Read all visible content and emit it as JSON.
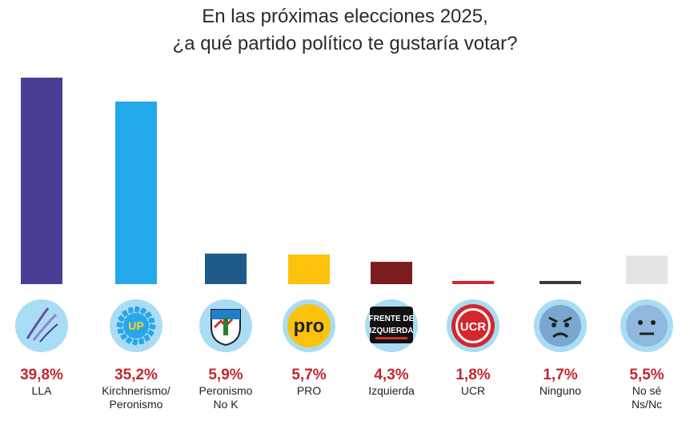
{
  "title": {
    "line1": "En las próximas elecciones 2025,",
    "line2": "¿a qué partido político te gustaría votar?"
  },
  "chart_data": {
    "type": "bar",
    "title": "En las próximas elecciones 2025, ¿a qué partido político te gustaría votar?",
    "categories": [
      "LLA",
      "Kirchnerismo/Peronismo",
      "Peronismo No K",
      "PRO",
      "Izquierda",
      "UCR",
      "Ninguno",
      "No sé Ns/Nc"
    ],
    "category_lines": [
      [
        "LLA"
      ],
      [
        "Kirchnerismo/",
        "Peronismo"
      ],
      [
        "Peronismo",
        "No K"
      ],
      [
        "PRO"
      ],
      [
        "Izquierda"
      ],
      [
        "UCR"
      ],
      [
        "Ninguno"
      ],
      [
        "No sé",
        "Ns/Nc"
      ]
    ],
    "values": [
      39.8,
      35.2,
      5.9,
      5.7,
      4.3,
      1.8,
      1.7,
      5.5
    ],
    "value_labels": [
      "39,8%",
      "35,2%",
      "5,9%",
      "5,7%",
      "4,3%",
      "1,8%",
      "1,7%",
      "5,5%"
    ],
    "colors": [
      "#463f93",
      "#23a9eb",
      "#1e5b8a",
      "#fcc20c",
      "#7b1c1f",
      "#d3262e",
      "#3a3a3a",
      "#e4e4e4"
    ],
    "icons": [
      "lla-logo-icon",
      "up-logo-icon",
      "peronismo-shield-icon",
      "pro-logo-icon",
      "frente-izquierda-logo-icon",
      "ucr-logo-icon",
      "angry-face-icon",
      "neutral-face-icon"
    ],
    "icon_texts": [
      "",
      "UP",
      "",
      "pro",
      "FRENTE DE IZQUIERDA",
      "UCR",
      "",
      ""
    ],
    "label_color": "#c2262e",
    "icon_circle_color": "#a9dcf5",
    "ylim": [
      0,
      40
    ],
    "grid": false,
    "legend": "none"
  }
}
